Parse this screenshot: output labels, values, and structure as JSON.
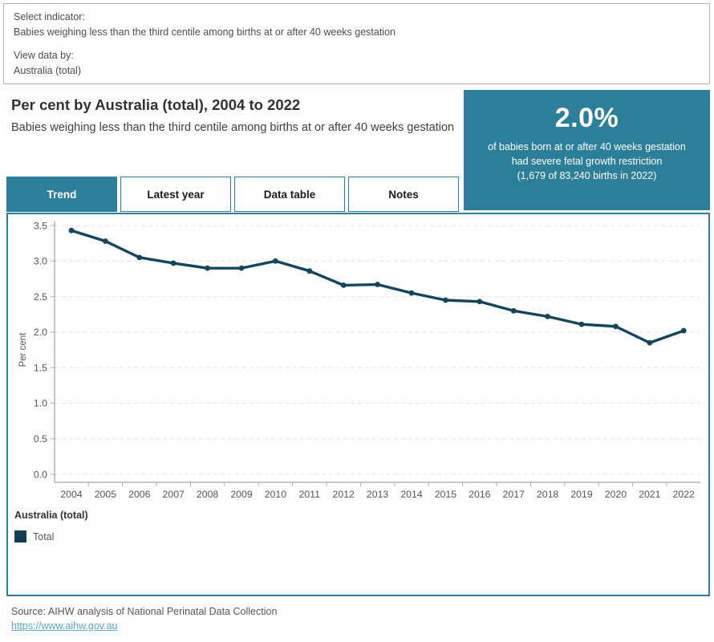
{
  "filters": {
    "indicator_label": "Select indicator:",
    "indicator_value": "Babies weighing less than the third centile among births at or after 40 weeks gestation",
    "view_label": "View data by:",
    "view_value": "Australia (total)"
  },
  "header": {
    "title": "Per cent by Australia (total), 2004 to 2022",
    "subtitle": "Babies weighing less than the third centile among births at or after 40 weeks gestation"
  },
  "stat_box": {
    "value": "2.0%",
    "lines": [
      "of babies born at or after 40 weeks gestation",
      "had severe fetal growth restriction",
      "(1,679 of 83,240 births in 2022)"
    ],
    "bg_color": "#2d7e99"
  },
  "tabs": [
    {
      "label": "Trend",
      "active": true
    },
    {
      "label": "Latest year",
      "active": false
    },
    {
      "label": "Data table",
      "active": false
    },
    {
      "label": "Notes",
      "active": false
    }
  ],
  "chart_data": {
    "type": "line",
    "title": "Per cent by Australia (total), 2004 to 2022",
    "xlabel": "",
    "ylabel": "Per cent",
    "ylim": [
      0,
      3.5
    ],
    "yticks": [
      0.0,
      0.5,
      1.0,
      1.5,
      2.0,
      2.5,
      3.0,
      3.5
    ],
    "grid": "horizontal-dashed",
    "legend_position": "bottom-left",
    "categories": [
      2004,
      2005,
      2006,
      2007,
      2008,
      2009,
      2010,
      2011,
      2012,
      2013,
      2014,
      2015,
      2016,
      2017,
      2018,
      2019,
      2020,
      2021,
      2022
    ],
    "series": [
      {
        "name": "Total",
        "color": "#14455a",
        "values": [
          3.43,
          3.28,
          3.05,
          2.97,
          2.9,
          2.9,
          3.0,
          2.86,
          2.66,
          2.67,
          2.55,
          2.45,
          2.43,
          2.3,
          2.22,
          2.11,
          2.08,
          1.85,
          2.02
        ]
      }
    ]
  },
  "legend": {
    "group_label": "Australia (total)",
    "items": [
      {
        "label": "Total",
        "color": "#123f53"
      }
    ]
  },
  "footer": {
    "source": "Source: AIHW analysis of National Perinatal Data Collection",
    "link": "https://www.aihw.gov.au"
  },
  "colors": {
    "accent_teal": "#2d7e99",
    "line_dark_teal": "#14455a",
    "gridline": "#e4e4e4",
    "axis": "#8c8c8c",
    "text_gray": "#555555"
  }
}
